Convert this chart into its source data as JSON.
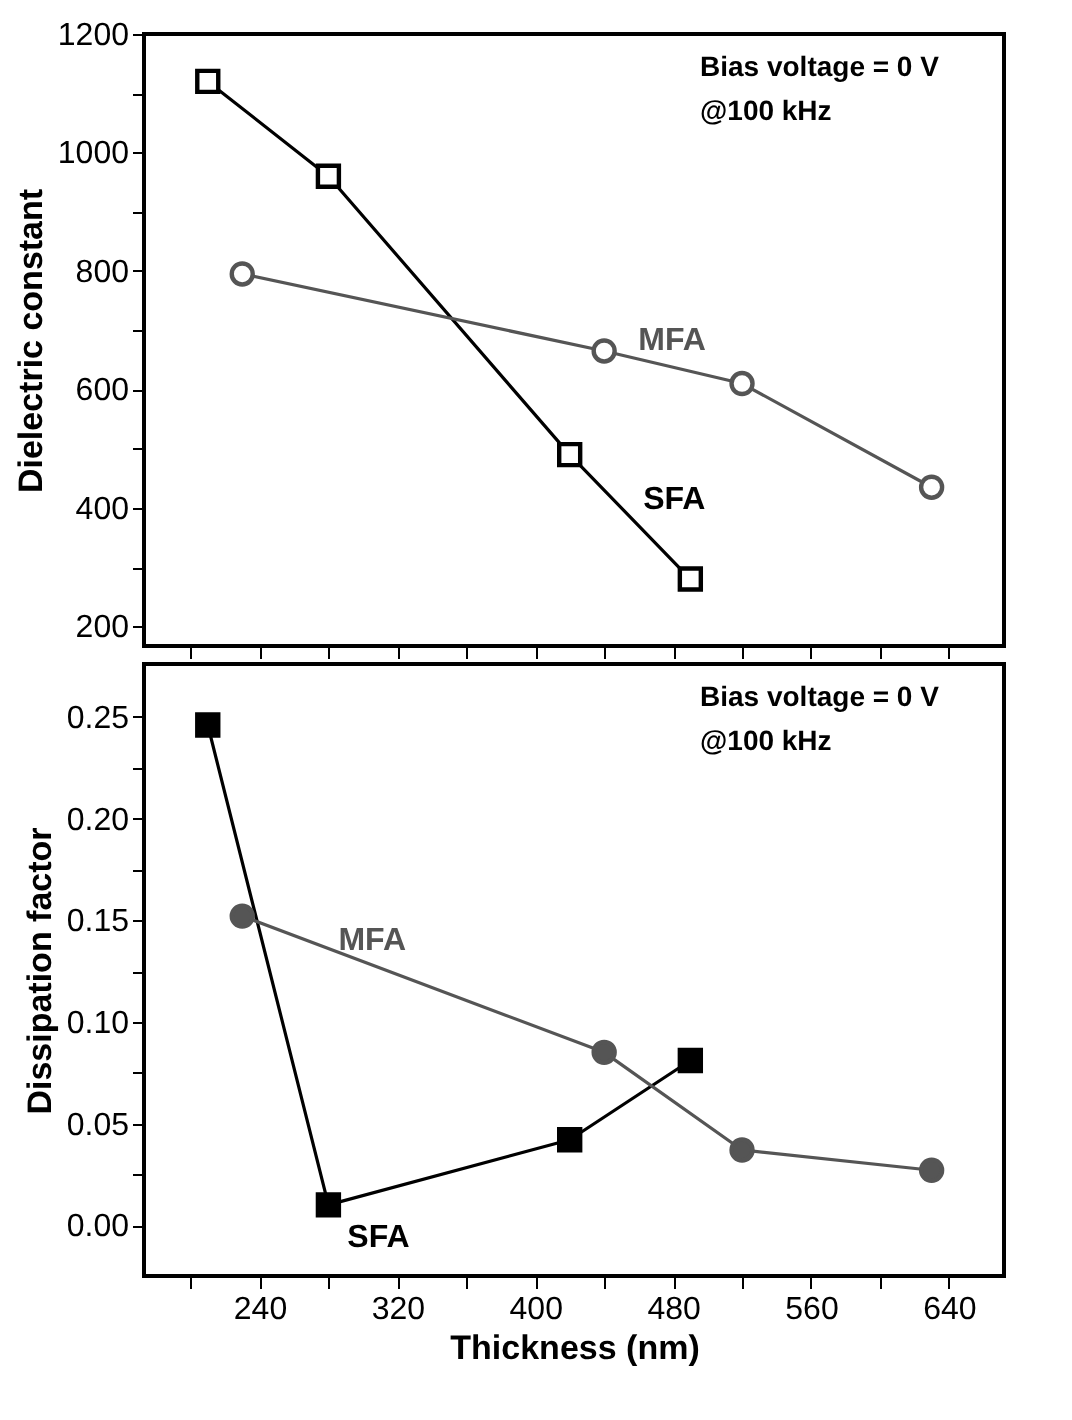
{
  "chart_data": [
    {
      "type": "line",
      "ylabel": "Dielectric constant",
      "annotations": [
        "Bias voltage = 0 V",
        "@100 kHz"
      ],
      "xlim": [
        173,
        672
      ],
      "xticks": [
        {
          "value": 200,
          "label": null
        },
        {
          "value": 240,
          "label": null
        },
        {
          "value": 280,
          "label": null
        },
        {
          "value": 320,
          "label": null
        },
        {
          "value": 360,
          "label": null
        },
        {
          "value": 400,
          "label": null
        },
        {
          "value": 440,
          "label": null
        },
        {
          "value": 480,
          "label": null
        },
        {
          "value": 520,
          "label": null
        },
        {
          "value": 560,
          "label": null
        },
        {
          "value": 600,
          "label": null
        },
        {
          "value": 640,
          "label": null
        }
      ],
      "ylim": [
        167,
        1200
      ],
      "yticks": [
        200,
        {
          "value": 300,
          "label": null
        },
        400,
        {
          "value": 500,
          "label": null
        },
        600,
        {
          "value": 700,
          "label": null
        },
        800,
        {
          "value": 900,
          "label": null
        },
        1000,
        {
          "value": 1100,
          "label": null
        },
        1200
      ],
      "tick_labels": "y",
      "grid": false,
      "series": [
        {
          "name": "SFA",
          "color": "#000000",
          "marker": "square",
          "x": [
            210,
            280,
            420,
            490
          ],
          "values": [
            1120,
            960,
            490,
            280
          ]
        },
        {
          "name": "MFA",
          "color": "#555555",
          "marker": "circle",
          "x": [
            230,
            440,
            520,
            630
          ],
          "values": [
            795,
            665,
            610,
            435
          ]
        }
      ]
    },
    {
      "type": "line",
      "xlabel": "Thickness (nm)",
      "ylabel": "Dissipation factor",
      "annotations": [
        "Bias voltage = 0 V",
        "@100 kHz"
      ],
      "xlim": [
        173,
        672
      ],
      "xticks": [
        {
          "value": 200,
          "label": null
        },
        240,
        {
          "value": 280,
          "label": null
        },
        320,
        {
          "value": 360,
          "label": null
        },
        400,
        {
          "value": 440,
          "label": null
        },
        480,
        {
          "value": 520,
          "label": null
        },
        560,
        {
          "value": 600,
          "label": null
        },
        640
      ],
      "ylim": [
        -0.025,
        0.276
      ],
      "yticks": [
        {
          "value": 0,
          "label": "0.00"
        },
        {
          "value": 0.025,
          "label": null
        },
        {
          "value": 0.05,
          "label": "0.05"
        },
        {
          "value": 0.075,
          "label": null
        },
        {
          "value": 0.1,
          "label": "0.10"
        },
        {
          "value": 0.125,
          "label": null
        },
        {
          "value": 0.15,
          "label": "0.15"
        },
        {
          "value": 0.175,
          "label": null
        },
        {
          "value": 0.2,
          "label": "0.20"
        },
        {
          "value": 0.225,
          "label": null
        },
        {
          "value": 0.25,
          "label": "0.25"
        }
      ],
      "grid": false,
      "series": [
        {
          "name": "SFA",
          "color": "#000000",
          "marker": "square",
          "x": [
            210,
            280,
            420,
            490
          ],
          "values": [
            0.246,
            0.01,
            0.042,
            0.081
          ]
        },
        {
          "name": "MFA",
          "color": "#555555",
          "marker": "circle",
          "x": [
            230,
            440,
            520,
            630
          ],
          "values": [
            0.152,
            0.085,
            0.037,
            0.027
          ]
        }
      ]
    }
  ]
}
